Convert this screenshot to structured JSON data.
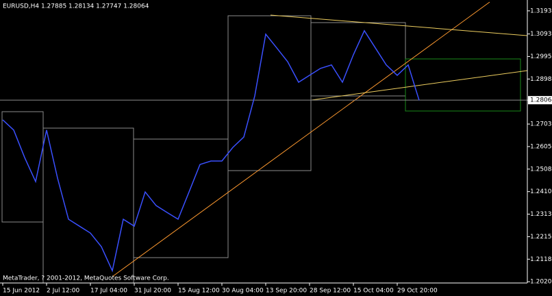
{
  "chart_data": {
    "type": "line",
    "title": "EURUSD,H4  1.27885 1.28134 1.27747 1.28064",
    "annotation": "MetaTrader, ? 2001-2012, MetaQuotes Software Corp.",
    "categories": [
      "15 Jun 2012",
      null,
      null,
      null,
      "2 Jul 12:00",
      null,
      null,
      null,
      "17 Jul 04:00",
      null,
      null,
      null,
      "31 Jul 20:00",
      null,
      null,
      null,
      "15 Aug 12:00",
      null,
      null,
      null,
      "30 Aug 04:00",
      null,
      null,
      null,
      "13 Sep 20:00",
      null,
      null,
      null,
      "28 Sep 12:00",
      null,
      null,
      null,
      "15 Oct 04:00",
      null,
      null,
      null,
      "29 Oct 20:00",
      null,
      null
    ],
    "series": [
      {
        "name": "EURUSD,H4",
        "color": "#3a50ff",
        "values": [
          1.2721,
          1.2677,
          1.2558,
          1.2454,
          1.2677,
          1.2469,
          1.2291,
          1.2261,
          1.2231,
          1.2172,
          1.2068,
          1.2291,
          1.2261,
          1.2409,
          1.235,
          1.232,
          1.2291,
          1.2409,
          1.2528,
          1.2543,
          1.2543,
          1.2602,
          1.2647,
          1.2825,
          1.3092,
          1.3033,
          1.2973,
          1.2884,
          1.2914,
          1.2944,
          1.2959,
          1.2884,
          1.3003,
          1.3107,
          1.3033,
          1.2959,
          1.2914,
          1.2959,
          1.2806
        ]
      }
    ],
    "ylim": [
      1.2015,
      1.324
    ],
    "yticks": [
      {
        "value": 1.3193,
        "label": "1.31930"
      },
      {
        "value": 1.3093,
        "label": "1.30930"
      },
      {
        "value": 1.29955,
        "label": "1.29955"
      },
      {
        "value": 1.2898,
        "label": "1.28980"
      },
      {
        "value": 1.28064,
        "label": "1.28064"
      },
      {
        "value": 1.2703,
        "label": "1.27030"
      },
      {
        "value": 1.26055,
        "label": "1.26055"
      },
      {
        "value": 1.2508,
        "label": "1.25080"
      },
      {
        "value": 1.24105,
        "label": "1.24105"
      },
      {
        "value": 1.2313,
        "label": "1.23130"
      },
      {
        "value": 1.22155,
        "label": "1.22155"
      },
      {
        "value": 1.2118,
        "label": "1.21180"
      },
      {
        "value": 1.20205,
        "label": "1.20205"
      }
    ],
    "current_price_tick": 4
  }
}
